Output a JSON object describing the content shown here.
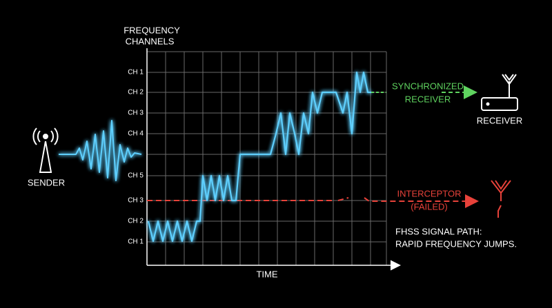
{
  "axis": {
    "title": [
      "FREQUENCY",
      "CHANNELS"
    ],
    "channels": [
      "CH 1",
      "CH 2",
      "CH 3",
      "CH 4",
      "CH 5",
      "CH 3",
      "CH 2",
      "CH 1"
    ],
    "x_title": "TIME"
  },
  "nodes": {
    "sender": "SENDER",
    "receiver": "RECEIVER",
    "synchronized": [
      "SYNCHRONIZED",
      "RECEIVER"
    ],
    "interceptor": [
      "INTERCEPTOR",
      "(FAILED)"
    ]
  },
  "caption": [
    "FHSS SIGNAL PATH:",
    "RAPID FREQUENCY JUMPS."
  ]
}
